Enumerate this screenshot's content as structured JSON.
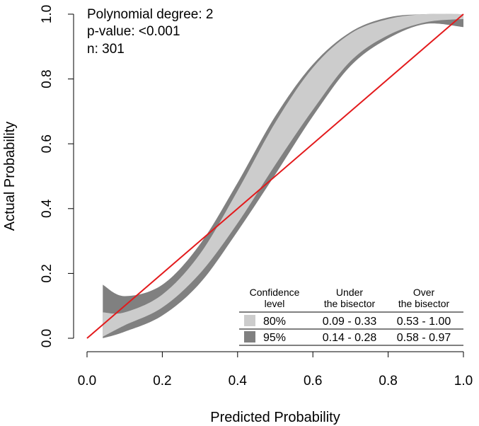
{
  "chart_data": {
    "type": "area",
    "title": "",
    "xlabel": "Predicted Probability",
    "ylabel": "Actual Probability",
    "xlim": [
      0,
      1
    ],
    "ylim": [
      0,
      1
    ],
    "grid": false,
    "x_ticks": [
      "0.0",
      "0.2",
      "0.4",
      "0.6",
      "0.8",
      "1.0"
    ],
    "y_ticks": [
      "0.0",
      "0.2",
      "0.4",
      "0.6",
      "0.8",
      "1.0"
    ],
    "annotations": [
      "Polynomial degree: 2",
      "p-value: <0.001",
      "n: 301"
    ],
    "bisector": {
      "x": [
        0,
        1
      ],
      "y": [
        0,
        1
      ],
      "color": "#e31a1c"
    },
    "band_x": [
      0.042,
      0.1,
      0.2,
      0.3,
      0.4,
      0.5,
      0.6,
      0.7,
      0.8,
      0.9,
      1.0
    ],
    "series": [
      {
        "name": "95%",
        "color": "#808080",
        "upper": [
          0.165,
          0.13,
          0.165,
          0.29,
          0.48,
          0.685,
          0.845,
          0.945,
          0.99,
          1.0,
          1.0
        ],
        "lower": [
          0.0,
          0.02,
          0.07,
          0.17,
          0.33,
          0.505,
          0.685,
          0.84,
          0.925,
          0.97,
          0.96
        ]
      },
      {
        "name": "80%",
        "color": "#cccccc",
        "upper": [
          0.08,
          0.08,
          0.135,
          0.26,
          0.455,
          0.665,
          0.835,
          0.94,
          0.985,
          1.0,
          1.0
        ],
        "lower": [
          0.005,
          0.04,
          0.095,
          0.2,
          0.355,
          0.535,
          0.705,
          0.855,
          0.935,
          0.975,
          0.985
        ]
      }
    ],
    "legend": {
      "placement": "bottom-right",
      "headers": [
        "Confidence\nlevel",
        "Under\nthe bisector",
        "Over\nthe bisector"
      ],
      "rows": [
        {
          "label": "80%",
          "under": "0.09 - 0.33",
          "over": "0.53 - 1.00",
          "color": "#cccccc"
        },
        {
          "label": "95%",
          "under": "0.14 - 0.28",
          "over": "0.58 - 0.97",
          "color": "#808080"
        }
      ]
    }
  }
}
